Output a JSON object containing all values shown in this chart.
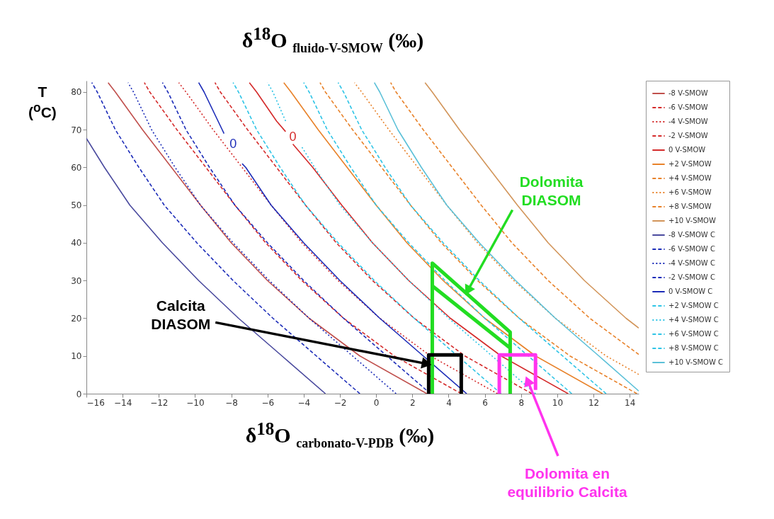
{
  "chart_data": {
    "type": "line",
    "title": "δ$^{18}$O $_{fluido-V-SMOW}$ (‰)",
    "xlabel": "δ$^{18}$O $_{carbonato-V-PDB}$ (‰)",
    "ylabel": "T\n($^{o}$C)",
    "xlim": [
      -16,
      14.5
    ],
    "ylim": [
      0,
      83
    ],
    "xticks": [
      -16,
      -14,
      -12,
      -10,
      -8,
      -6,
      -4,
      -2,
      0,
      2,
      4,
      6,
      8,
      10,
      12,
      14
    ],
    "yticks": [
      0,
      10,
      20,
      30,
      40,
      50,
      60,
      70,
      80
    ],
    "grid": false,
    "legend": "top right",
    "marker": "none",
    "series": [
      {
        "name": "-8 V-SMOW",
        "color": "#c0504d",
        "line_style": "solid",
        "x": [
          2.8,
          -0.9,
          -3.7,
          -6.0,
          -8.0,
          -9.7,
          -11.3,
          -12.9,
          -14.4,
          -14.8
        ],
        "values": [
          0,
          10,
          20,
          30,
          40,
          50,
          60,
          70,
          80,
          82.5
        ]
      },
      {
        "name": "-6 V-SMOW",
        "color": "#d42a2a",
        "line_style": "dashed",
        "x": [
          4.7,
          1.0,
          -1.8,
          -4.1,
          -6.1,
          -7.8,
          -9.4,
          -11.0,
          -12.5,
          -12.8
        ],
        "values": [
          0,
          10,
          20,
          30,
          40,
          50,
          60,
          70,
          80,
          82.5
        ]
      },
      {
        "name": "-4 V-SMOW",
        "color": "#d42a2a",
        "line_style": "dotted",
        "x": [
          6.7,
          3.0,
          0.2,
          -2.1,
          -4.1,
          -5.8,
          -7.4,
          -9.0,
          -10.5,
          -10.9
        ],
        "values": [
          0,
          10,
          20,
          30,
          40,
          50,
          60,
          70,
          80,
          82.5
        ]
      },
      {
        "name": "-2 V-SMOW",
        "color": "#d42a2a",
        "line_style": "dashed",
        "x": [
          8.6,
          4.9,
          2.1,
          -0.2,
          -2.2,
          -3.9,
          -5.5,
          -7.1,
          -8.6,
          -8.9
        ],
        "values": [
          0,
          10,
          20,
          30,
          40,
          50,
          60,
          70,
          80,
          82.5
        ]
      },
      {
        "name": "0 V-SMOW",
        "color": "#d42a2a",
        "line_style": "solid",
        "x": [
          10.6,
          6.9,
          4.1,
          1.8,
          -0.2,
          -1.9,
          -3.5,
          -4.3,
          -4.6,
          -4.85,
          -5.0,
          -5.5,
          -6.6,
          -7.0
        ],
        "values": [
          0,
          10,
          20,
          30,
          40,
          50,
          60,
          64.5,
          66.2,
          null,
          69.5,
          72.3,
          80,
          82.5
        ]
      },
      {
        "name": "+2 V-SMOW",
        "color": "#e8822a",
        "line_style": "solid",
        "x": [
          12.5,
          8.8,
          6.0,
          3.7,
          1.7,
          0.0,
          -1.6,
          -3.2,
          -4.7,
          -5.1
        ],
        "values": [
          0,
          10,
          20,
          30,
          40,
          50,
          60,
          70,
          80,
          82.5
        ]
      },
      {
        "name": "+4 V-SMOW",
        "color": "#e8822a",
        "line_style": "dashed",
        "x": [
          14.4,
          10.7,
          7.9,
          5.6,
          3.6,
          1.9,
          0.3,
          -1.3,
          -2.8,
          -3.1
        ],
        "values": [
          0,
          10,
          20,
          30,
          40,
          50,
          60,
          70,
          80,
          82.5
        ]
      },
      {
        "name": "+6 V-SMOW",
        "color": "#e8822a",
        "line_style": "dotted",
        "x": [
          14.5,
          12.7,
          9.9,
          7.6,
          5.6,
          3.9,
          2.3,
          0.7,
          -0.8,
          -1.2
        ],
        "values": [
          5.1,
          10,
          20,
          30,
          40,
          50,
          60,
          70,
          80,
          82.5
        ]
      },
      {
        "name": "+8 V-SMOW",
        "color": "#e8822a",
        "line_style": "dashed",
        "x": [
          14.5,
          11.8,
          9.5,
          7.5,
          5.8,
          4.2,
          2.6,
          1.1,
          0.8
        ],
        "values": [
          10.4,
          20,
          30,
          40,
          50,
          60,
          70,
          80,
          82.5
        ]
      },
      {
        "name": "+10 V-SMOW",
        "color": "#d2955a",
        "line_style": "solid",
        "x": [
          14.5,
          13.8,
          11.5,
          9.5,
          7.8,
          6.2,
          4.6,
          3.1,
          2.7
        ],
        "values": [
          17.4,
          20,
          30,
          40,
          50,
          60,
          70,
          80,
          82.5
        ]
      },
      {
        "name": "-8 V-SMOW C",
        "color": "#4a4a9e",
        "line_style": "solid",
        "x": [
          -2.8,
          -5.2,
          -7.6,
          -9.8,
          -11.8,
          -13.6,
          -15.0,
          -16.0
        ],
        "values": [
          0,
          10,
          20,
          30,
          40,
          50,
          60,
          67.7
        ]
      },
      {
        "name": "-6 V-SMOW C",
        "color": "#1c2cb8",
        "line_style": "dashed",
        "x": [
          -0.9,
          -3.3,
          -5.7,
          -7.9,
          -9.9,
          -11.7,
          -13.1,
          -14.4,
          -15.4,
          -15.7
        ],
        "values": [
          0,
          10,
          20,
          30,
          40,
          50,
          60,
          70,
          80,
          82.5
        ]
      },
      {
        "name": "-4 V-SMOW C",
        "color": "#1c2cb8",
        "line_style": "dotted",
        "x": [
          1.1,
          -1.3,
          -3.7,
          -5.9,
          -7.9,
          -9.7,
          -11.1,
          -12.4,
          -13.4,
          -13.7
        ],
        "values": [
          0,
          10,
          20,
          30,
          40,
          50,
          60,
          70,
          80,
          82.5
        ]
      },
      {
        "name": "-2 V-SMOW C",
        "color": "#1c2cb8",
        "line_style": "dashed",
        "x": [
          3.0,
          0.6,
          -1.8,
          -4.0,
          -6.0,
          -7.8,
          -9.2,
          -10.5,
          -11.5,
          -11.8
        ],
        "values": [
          0,
          10,
          20,
          30,
          40,
          50,
          60,
          70,
          80,
          82.5
        ]
      },
      {
        "name": "0 V-SMOW C",
        "color": "#1c2cb8",
        "line_style": "solid",
        "x": [
          5.0,
          2.6,
          0.2,
          -2.0,
          -4.0,
          -5.8,
          -7.2,
          -7.4,
          -7.9,
          -8.4,
          -8.5,
          -9.5,
          -9.8
        ],
        "values": [
          0,
          10,
          20,
          30,
          40,
          50,
          60,
          61,
          null,
          69,
          70,
          80,
          82.5
        ]
      },
      {
        "name": "+2 V-SMOW C",
        "color": "#2ec4e6",
        "line_style": "dashed",
        "x": [
          6.9,
          4.5,
          2.1,
          -0.1,
          -2.1,
          -3.9,
          -5.3,
          -6.6,
          -7.6,
          -7.9
        ],
        "values": [
          0,
          10,
          20,
          30,
          40,
          50,
          60,
          70,
          80,
          82.5
        ]
      },
      {
        "name": "+4 V-SMOW C",
        "color": "#2ec4e6",
        "line_style": "dotted",
        "x": [
          8.8,
          6.4,
          4.0,
          1.8,
          -0.2,
          -2.0,
          -3.4,
          -4.1,
          -4.5,
          -5.0,
          -5.7,
          -6.0
        ],
        "values": [
          0,
          10,
          20,
          30,
          40,
          50,
          60,
          65.4,
          null,
          72.3,
          80,
          82.5
        ]
      },
      {
        "name": "+6 V-SMOW C",
        "color": "#2ec4e6",
        "line_style": "dashed",
        "x": [
          10.8,
          8.4,
          6.0,
          3.8,
          1.8,
          0.0,
          -1.4,
          -2.7,
          -3.7,
          -4.0
        ],
        "values": [
          0,
          10,
          20,
          30,
          40,
          50,
          60,
          70,
          80,
          82.5
        ]
      },
      {
        "name": "+8 V-SMOW C",
        "color": "#2ec4e6",
        "line_style": "dashed",
        "x": [
          12.7,
          10.3,
          7.9,
          5.7,
          3.7,
          1.9,
          0.5,
          -0.8,
          -1.8,
          -2.1
        ],
        "values": [
          0,
          10,
          20,
          30,
          40,
          50,
          60,
          70,
          80,
          82.5
        ]
      },
      {
        "name": "+10 V-SMOW C",
        "color": "#5bc0d8",
        "line_style": "solid",
        "x": [
          14.5,
          12.3,
          9.9,
          7.7,
          5.7,
          3.9,
          2.5,
          1.2,
          0.2,
          -0.1
        ],
        "values": [
          0.7,
          10,
          20,
          30,
          40,
          50,
          60,
          70,
          80,
          82.5
        ]
      },
      {
        "color": "#22dd22",
        "line_style": "solid",
        "x": [
          3.1,
          3.1,
          7.4,
          7.4
        ],
        "values": [
          0,
          34.6,
          16.3,
          0
        ]
      },
      {
        "color": "#22dd22",
        "line_style": "solid",
        "x": [
          3.1,
          7.4
        ],
        "values": [
          28.6,
          12.1
        ]
      },
      {
        "color": "#000000",
        "line_style": "solid",
        "x": [
          2.9,
          2.9,
          4.7,
          4.7
        ],
        "values": [
          0,
          10.3,
          10.3,
          0
        ]
      },
      {
        "color": "#ff33ee",
        "line_style": "solid",
        "x": [
          6.8,
          6.8,
          8.8,
          8.8
        ],
        "values": [
          0,
          10.3,
          10.3,
          1
        ]
      }
    ],
    "annotations": [
      {
        "text": "Calcita\nDIASOM",
        "x": 2.7,
        "y": 8
      },
      {
        "text": "Dolomita\nDIASOM",
        "x": 5.1,
        "y": 27.7
      },
      {
        "text": "Dolomita en\nequilibrio Calcita",
        "x": 8.4,
        "y": 3
      },
      {
        "text": "0",
        "x": -7.9,
        "y": 64.5
      },
      {
        "text": "0",
        "x": -4.6,
        "y": 66.2
      }
    ]
  }
}
